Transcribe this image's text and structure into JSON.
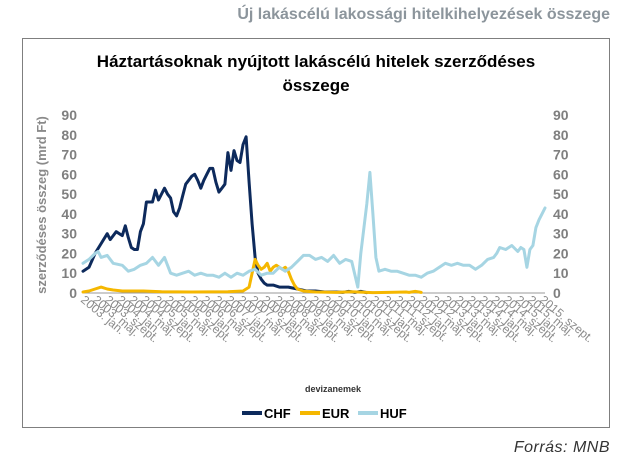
{
  "page": {
    "header": "Új lakáscélú lakossági hitelkihelyezések összege",
    "source": "Forrás: MNB"
  },
  "chart_data": {
    "type": "line",
    "title_line1": "Háztartásoknak nyújtott lakáscélú hitelek szerződéses",
    "title_line2": "összege",
    "ylabel": "szerződéses összeg (mrd Ft)",
    "ylim": [
      0,
      90
    ],
    "yticks": [
      0,
      10,
      20,
      30,
      40,
      50,
      60,
      70,
      80,
      90
    ],
    "x_start": "2003-01",
    "x_end": "2015-10",
    "xtick_labels": [
      "2003. jan.",
      "2003. máj.",
      "2003. szept.",
      "2004. jan.",
      "2004. máj.",
      "2004. szept.",
      "2005. jan.",
      "2005. máj.",
      "2005. szept.",
      "2006. jan.",
      "2006. máj.",
      "2006. szept.",
      "2007. jan.",
      "2007. máj.",
      "2007. szept.",
      "2008. jan.",
      "2008. máj.",
      "2008. szept.",
      "2009. jan.",
      "2009. máj.",
      "2009. szept.",
      "2010. jan.",
      "2010. máj.",
      "2010. szept.",
      "2011. jan.",
      "2011. máj.",
      "2011. szept.",
      "2012. jan.",
      "2012. máj.",
      "2012. szept.",
      "2013. jan.",
      "2013. máj.",
      "2013. szept.",
      "2014. jan.",
      "2014. máj.",
      "2014. szept.",
      "2015. jan.",
      "2015. máj.",
      "2015. szept."
    ],
    "legend_title": "devizanemek",
    "legend_position": "bottom",
    "series": [
      {
        "name": "CHF",
        "color": "#0d2a5c",
        "points": [
          [
            "2003-01",
            11
          ],
          [
            "2003-03",
            13
          ],
          [
            "2003-05",
            20
          ],
          [
            "2003-07",
            25
          ],
          [
            "2003-09",
            30
          ],
          [
            "2003-10",
            27
          ],
          [
            "2003-12",
            31
          ],
          [
            "2004-02",
            29
          ],
          [
            "2004-03",
            34
          ],
          [
            "2004-04",
            28
          ],
          [
            "2004-05",
            23
          ],
          [
            "2004-06",
            22
          ],
          [
            "2004-07",
            22
          ],
          [
            "2004-08",
            31
          ],
          [
            "2004-09",
            35
          ],
          [
            "2004-10",
            46
          ],
          [
            "2004-12",
            46
          ],
          [
            "2005-01",
            52
          ],
          [
            "2005-02",
            47
          ],
          [
            "2005-04",
            53
          ],
          [
            "2005-05",
            50
          ],
          [
            "2005-06",
            48
          ],
          [
            "2005-07",
            41
          ],
          [
            "2005-08",
            39
          ],
          [
            "2005-09",
            43
          ],
          [
            "2005-10",
            49
          ],
          [
            "2005-11",
            55
          ],
          [
            "2006-01",
            59
          ],
          [
            "2006-02",
            60
          ],
          [
            "2006-03",
            57
          ],
          [
            "2006-04",
            53
          ],
          [
            "2006-05",
            57
          ],
          [
            "2006-06",
            60
          ],
          [
            "2006-07",
            63
          ],
          [
            "2006-08",
            63
          ],
          [
            "2006-09",
            56
          ],
          [
            "2006-10",
            51
          ],
          [
            "2006-11",
            53
          ],
          [
            "2006-12",
            55
          ],
          [
            "2007-01",
            71
          ],
          [
            "2007-02",
            62
          ],
          [
            "2007-03",
            72
          ],
          [
            "2007-04",
            67
          ],
          [
            "2007-05",
            66
          ],
          [
            "2007-06",
            75
          ],
          [
            "2007-07",
            79
          ],
          [
            "2007-08",
            56
          ],
          [
            "2007-09",
            35
          ],
          [
            "2007-10",
            18
          ],
          [
            "2007-11",
            10
          ],
          [
            "2007-12",
            7
          ],
          [
            "2008-01",
            5
          ],
          [
            "2008-02",
            4
          ],
          [
            "2008-04",
            4
          ],
          [
            "2008-06",
            3
          ],
          [
            "2008-09",
            3
          ],
          [
            "2008-12",
            2
          ],
          [
            "2009-03",
            1
          ],
          [
            "2009-06",
            1
          ],
          [
            "2009-09",
            0.5
          ],
          [
            "2010-01",
            0.5
          ],
          [
            "2010-03",
            0.3
          ],
          [
            "2010-05",
            0.8
          ],
          [
            "2010-07",
            0.3
          ],
          [
            "2010-09",
            0.8
          ],
          [
            "2010-11",
            0.2
          ]
        ]
      },
      {
        "name": "EUR",
        "color": "#f5b700",
        "points": [
          [
            "2003-01",
            0.5
          ],
          [
            "2003-03",
            1
          ],
          [
            "2003-05",
            2
          ],
          [
            "2003-07",
            3
          ],
          [
            "2003-09",
            2
          ],
          [
            "2003-11",
            1.5
          ],
          [
            "2004-02",
            1
          ],
          [
            "2004-05",
            1
          ],
          [
            "2004-09",
            1
          ],
          [
            "2005-03",
            0.6
          ],
          [
            "2006-01",
            0.5
          ],
          [
            "2007-01",
            0.6
          ],
          [
            "2007-06",
            1
          ],
          [
            "2007-08",
            3
          ],
          [
            "2007-09",
            10
          ],
          [
            "2007-10",
            17
          ],
          [
            "2007-11",
            14
          ],
          [
            "2007-12",
            12
          ],
          [
            "2008-01",
            13
          ],
          [
            "2008-02",
            15
          ],
          [
            "2008-03",
            11
          ],
          [
            "2008-04",
            13
          ],
          [
            "2008-05",
            14
          ],
          [
            "2008-06",
            13
          ],
          [
            "2008-07",
            12
          ],
          [
            "2008-08",
            13
          ],
          [
            "2008-09",
            11
          ],
          [
            "2008-10",
            7
          ],
          [
            "2008-11",
            4
          ],
          [
            "2008-12",
            2
          ],
          [
            "2009-02",
            1
          ],
          [
            "2009-06",
            0.5
          ],
          [
            "2010-01",
            0.3
          ],
          [
            "2010-06",
            0.6
          ],
          [
            "2011-01",
            0.2
          ],
          [
            "2011-06",
            0.3
          ],
          [
            "2011-12",
            0.5
          ],
          [
            "2012-01",
            0.3
          ],
          [
            "2012-03",
            0.8
          ],
          [
            "2012-05",
            0.3
          ]
        ]
      },
      {
        "name": "HUF",
        "color": "#a6d5e3",
        "points": [
          [
            "2003-01",
            15
          ],
          [
            "2003-03",
            17
          ],
          [
            "2003-05",
            20
          ],
          [
            "2003-06",
            21
          ],
          [
            "2003-07",
            18
          ],
          [
            "2003-09",
            19
          ],
          [
            "2003-11",
            15
          ],
          [
            "2004-02",
            14
          ],
          [
            "2004-04",
            11
          ],
          [
            "2004-06",
            12
          ],
          [
            "2004-08",
            14
          ],
          [
            "2004-10",
            15
          ],
          [
            "2004-12",
            18
          ],
          [
            "2005-02",
            14
          ],
          [
            "2005-04",
            18
          ],
          [
            "2005-06",
            10
          ],
          [
            "2005-08",
            9
          ],
          [
            "2005-10",
            10
          ],
          [
            "2005-12",
            11
          ],
          [
            "2006-02",
            9
          ],
          [
            "2006-04",
            10
          ],
          [
            "2006-06",
            9
          ],
          [
            "2006-08",
            9
          ],
          [
            "2006-10",
            8
          ],
          [
            "2006-12",
            10
          ],
          [
            "2007-02",
            8
          ],
          [
            "2007-04",
            10
          ],
          [
            "2007-06",
            9
          ],
          [
            "2007-08",
            11
          ],
          [
            "2007-10",
            12
          ],
          [
            "2007-12",
            9
          ],
          [
            "2008-02",
            10
          ],
          [
            "2008-04",
            10
          ],
          [
            "2008-06",
            13
          ],
          [
            "2008-08",
            11
          ],
          [
            "2008-10",
            13
          ],
          [
            "2008-12",
            16
          ],
          [
            "2009-02",
            19
          ],
          [
            "2009-04",
            19
          ],
          [
            "2009-06",
            17
          ],
          [
            "2009-08",
            18
          ],
          [
            "2009-10",
            16
          ],
          [
            "2009-12",
            19
          ],
          [
            "2010-02",
            15
          ],
          [
            "2010-04",
            17
          ],
          [
            "2010-06",
            16
          ],
          [
            "2010-08",
            3
          ],
          [
            "2010-09",
            20
          ],
          [
            "2010-11",
            45
          ],
          [
            "2010-12",
            61
          ],
          [
            "2011-01",
            40
          ],
          [
            "2011-02",
            18
          ],
          [
            "2011-03",
            11
          ],
          [
            "2011-05",
            12
          ],
          [
            "2011-07",
            11
          ],
          [
            "2011-09",
            11
          ],
          [
            "2011-11",
            10
          ],
          [
            "2012-01",
            9
          ],
          [
            "2012-03",
            9
          ],
          [
            "2012-05",
            8
          ],
          [
            "2012-07",
            10
          ],
          [
            "2012-09",
            11
          ],
          [
            "2012-11",
            13
          ],
          [
            "2013-01",
            15
          ],
          [
            "2013-03",
            14
          ],
          [
            "2013-05",
            15
          ],
          [
            "2013-07",
            14
          ],
          [
            "2013-09",
            14
          ],
          [
            "2013-11",
            12
          ],
          [
            "2014-01",
            14
          ],
          [
            "2014-03",
            17
          ],
          [
            "2014-05",
            18
          ],
          [
            "2014-06",
            20
          ],
          [
            "2014-07",
            23
          ],
          [
            "2014-09",
            22
          ],
          [
            "2014-11",
            24
          ],
          [
            "2015-01",
            21
          ],
          [
            "2015-02",
            23
          ],
          [
            "2015-03",
            22
          ],
          [
            "2015-04",
            13
          ],
          [
            "2015-05",
            22
          ],
          [
            "2015-06",
            24
          ],
          [
            "2015-07",
            33
          ],
          [
            "2015-08",
            37
          ],
          [
            "2015-09",
            40
          ],
          [
            "2015-10",
            43
          ]
        ]
      }
    ]
  }
}
